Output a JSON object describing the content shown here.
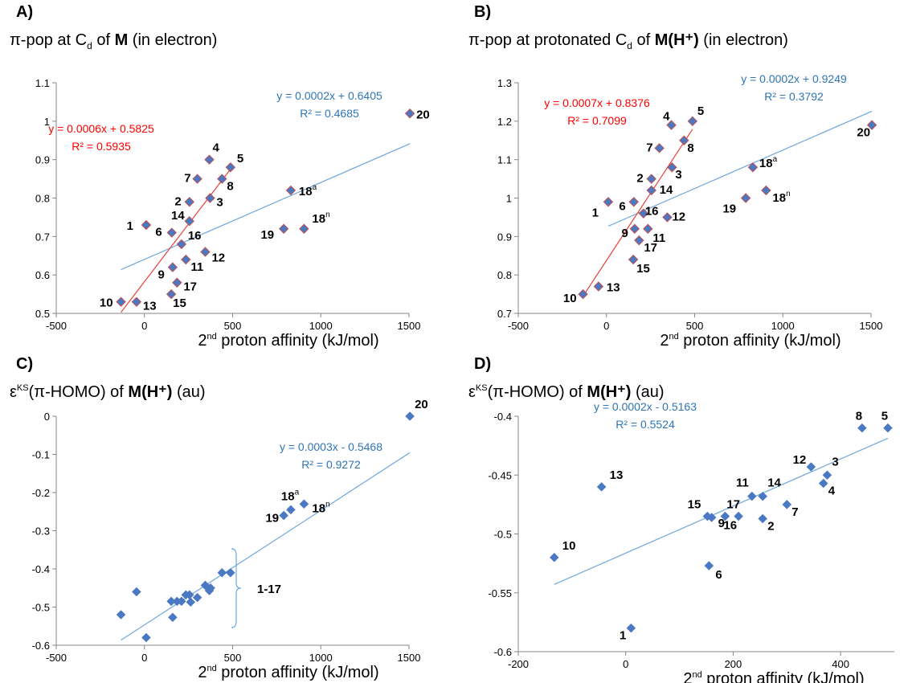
{
  "colors": {
    "marker": "#4a78c2",
    "marker_edge_red": "#c0504d",
    "fit_blue": "#6fa8dc",
    "fit_red": "#e8413c",
    "eq_blue": "#2e75b6",
    "eq_red": "#ff0000",
    "axis": "#868686"
  },
  "chart_data": [
    {
      "type": "scatter",
      "panel": "A)",
      "title": {
        "pre": "π-pop at C",
        "sub": "d",
        "mid": " of ",
        "bold": "M",
        "post": " (in electron)"
      },
      "xlabel": {
        "pre": "2",
        "sup": "nd",
        "post": " proton affinity (kJ/mol)"
      },
      "xlim": [
        -500,
        1500
      ],
      "ylim": [
        0.5,
        1.1
      ],
      "xticks": [
        -500,
        0,
        500,
        1000,
        1500
      ],
      "yticks": [
        0.5,
        0.6,
        0.7,
        0.8,
        0.9,
        1,
        1.1
      ],
      "red_edge_markers": true,
      "points": [
        {
          "x": 10,
          "y": 0.73,
          "label": "1",
          "sup": ""
        },
        {
          "x": 255,
          "y": 0.79,
          "label": "2",
          "sup": ""
        },
        {
          "x": 372,
          "y": 0.8,
          "label": "3",
          "sup": ""
        },
        {
          "x": 368,
          "y": 0.9,
          "label": "4",
          "sup": ""
        },
        {
          "x": 488,
          "y": 0.88,
          "label": "5",
          "sup": ""
        },
        {
          "x": 155,
          "y": 0.71,
          "label": "6",
          "sup": ""
        },
        {
          "x": 300,
          "y": 0.85,
          "label": "7",
          "sup": ""
        },
        {
          "x": 440,
          "y": 0.85,
          "label": "8",
          "sup": ""
        },
        {
          "x": 160,
          "y": 0.62,
          "label": "9",
          "sup": ""
        },
        {
          "x": -133,
          "y": 0.53,
          "label": "10",
          "sup": ""
        },
        {
          "x": 235,
          "y": 0.64,
          "label": "11",
          "sup": ""
        },
        {
          "x": 345,
          "y": 0.66,
          "label": "12",
          "sup": ""
        },
        {
          "x": -45,
          "y": 0.53,
          "label": "13",
          "sup": ""
        },
        {
          "x": 255,
          "y": 0.74,
          "label": "14",
          "sup": ""
        },
        {
          "x": 152,
          "y": 0.55,
          "label": "15",
          "sup": ""
        },
        {
          "x": 210,
          "y": 0.68,
          "label": "16",
          "sup": ""
        },
        {
          "x": 185,
          "y": 0.58,
          "label": "17",
          "sup": ""
        },
        {
          "x": 830,
          "y": 0.82,
          "label": "18",
          "sup": "a"
        },
        {
          "x": 905,
          "y": 0.72,
          "label": "18",
          "sup": "n"
        },
        {
          "x": 790,
          "y": 0.72,
          "label": "19",
          "sup": ""
        },
        {
          "x": 1505,
          "y": 1.02,
          "label": "20",
          "sup": ""
        }
      ],
      "fits": [
        {
          "color": "blue",
          "slope": 0.0002,
          "intercept": 0.6405,
          "x_range": [
            -133,
            1505
          ],
          "eq": "y = 0.0002x + 0.6405",
          "r2": "R² = 0.4685"
        },
        {
          "color": "red",
          "slope": 0.0006,
          "intercept": 0.5825,
          "x_range": [
            -133,
            488
          ],
          "eq": "y = 0.0006x + 0.5825",
          "r2": "R² = 0.5935"
        }
      ]
    },
    {
      "type": "scatter",
      "panel": "B)",
      "title": {
        "pre": "π-pop at protonated C",
        "sub": "d",
        "mid": " of ",
        "bold": "M(H⁺)",
        "post": " (in electron)"
      },
      "xlabel": {
        "pre": "2",
        "sup": "nd",
        "post": " proton affinity (kJ/mol)"
      },
      "xlim": [
        -500,
        1500
      ],
      "ylim": [
        0.7,
        1.3
      ],
      "xticks": [
        -500,
        0,
        500,
        1000,
        1500
      ],
      "yticks": [
        0.7,
        0.8,
        0.9,
        1,
        1.1,
        1.2,
        1.3
      ],
      "red_edge_markers": true,
      "points": [
        {
          "x": 10,
          "y": 0.99,
          "label": "1",
          "sup": ""
        },
        {
          "x": 255,
          "y": 1.05,
          "label": "2",
          "sup": ""
        },
        {
          "x": 372,
          "y": 1.08,
          "label": "3",
          "sup": ""
        },
        {
          "x": 368,
          "y": 1.19,
          "label": "4",
          "sup": ""
        },
        {
          "x": 488,
          "y": 1.2,
          "label": "5",
          "sup": ""
        },
        {
          "x": 155,
          "y": 0.99,
          "label": "6",
          "sup": ""
        },
        {
          "x": 300,
          "y": 1.13,
          "label": "7",
          "sup": ""
        },
        {
          "x": 440,
          "y": 1.15,
          "label": "8",
          "sup": ""
        },
        {
          "x": 160,
          "y": 0.92,
          "label": "9",
          "sup": ""
        },
        {
          "x": -133,
          "y": 0.75,
          "label": "10",
          "sup": ""
        },
        {
          "x": 235,
          "y": 0.92,
          "label": "11",
          "sup": ""
        },
        {
          "x": 345,
          "y": 0.95,
          "label": "12",
          "sup": ""
        },
        {
          "x": -45,
          "y": 0.77,
          "label": "13",
          "sup": ""
        },
        {
          "x": 255,
          "y": 1.02,
          "label": "14",
          "sup": ""
        },
        {
          "x": 152,
          "y": 0.84,
          "label": "15",
          "sup": ""
        },
        {
          "x": 210,
          "y": 0.96,
          "label": "16",
          "sup": ""
        },
        {
          "x": 185,
          "y": 0.89,
          "label": "17",
          "sup": ""
        },
        {
          "x": 830,
          "y": 1.08,
          "label": "18",
          "sup": "a"
        },
        {
          "x": 905,
          "y": 1.02,
          "label": "18",
          "sup": "n"
        },
        {
          "x": 790,
          "y": 1.0,
          "label": "19",
          "sup": ""
        },
        {
          "x": 1505,
          "y": 1.19,
          "label": "20",
          "sup": ""
        }
      ],
      "fits": [
        {
          "color": "blue",
          "slope": 0.0002,
          "intercept": 0.9249,
          "x_range": [
            10,
            1505
          ],
          "eq": "y = 0.0002x + 0.9249",
          "r2": "R² = 0.3792"
        },
        {
          "color": "red",
          "slope": 0.0007,
          "intercept": 0.8376,
          "x_range": [
            -133,
            488
          ],
          "eq": "y = 0.0007x + 0.8376",
          "r2": "R² = 0.7099"
        }
      ]
    },
    {
      "type": "scatter",
      "panel": "C)",
      "title": {
        "pre": "ε",
        "sup": "KS",
        "mid": "(π-HOMO)  of ",
        "bold": "M(H⁺)",
        "post": " (au)"
      },
      "xlabel": {
        "pre": "2",
        "sup": "nd",
        "post": " proton affinity (kJ/mol)"
      },
      "xlim": [
        -500,
        1500
      ],
      "ylim": [
        -0.6,
        0
      ],
      "xticks": [
        -500,
        0,
        500,
        1000,
        1500
      ],
      "yticks": [
        -0.6,
        -0.5,
        -0.4,
        -0.3,
        -0.2,
        -0.1,
        0
      ],
      "red_edge_markers": false,
      "points": [
        {
          "x": -133,
          "y": -0.52,
          "label": "",
          "sup": ""
        },
        {
          "x": -45,
          "y": -0.46,
          "label": "",
          "sup": ""
        },
        {
          "x": 10,
          "y": -0.58,
          "label": "",
          "sup": ""
        },
        {
          "x": 152,
          "y": -0.485,
          "label": "",
          "sup": ""
        },
        {
          "x": 160,
          "y": -0.527,
          "label": "",
          "sup": ""
        },
        {
          "x": 185,
          "y": -0.485,
          "label": "",
          "sup": ""
        },
        {
          "x": 210,
          "y": -0.485,
          "label": "",
          "sup": ""
        },
        {
          "x": 235,
          "y": -0.468,
          "label": "",
          "sup": ""
        },
        {
          "x": 255,
          "y": -0.468,
          "label": "",
          "sup": ""
        },
        {
          "x": 262,
          "y": -0.487,
          "label": "",
          "sup": ""
        },
        {
          "x": 300,
          "y": -0.475,
          "label": "",
          "sup": ""
        },
        {
          "x": 345,
          "y": -0.443,
          "label": "",
          "sup": ""
        },
        {
          "x": 368,
          "y": -0.457,
          "label": "",
          "sup": ""
        },
        {
          "x": 375,
          "y": -0.45,
          "label": "",
          "sup": ""
        },
        {
          "x": 440,
          "y": -0.41,
          "label": "",
          "sup": ""
        },
        {
          "x": 488,
          "y": -0.41,
          "label": "",
          "sup": ""
        },
        {
          "x": 790,
          "y": -0.26,
          "label": "19",
          "sup": ""
        },
        {
          "x": 830,
          "y": -0.245,
          "label": "18",
          "sup": "a"
        },
        {
          "x": 905,
          "y": -0.23,
          "label": "18",
          "sup": "n"
        },
        {
          "x": 1505,
          "y": 0,
          "label": "20",
          "sup": ""
        }
      ],
      "bracket_label": "1-17",
      "fits": [
        {
          "color": "blue",
          "slope": 0.0003,
          "intercept": -0.5468,
          "x_range": [
            -133,
            1505
          ],
          "eq": "y = 0.0003x - 0.5468",
          "r2": "R² = 0.9272"
        }
      ]
    },
    {
      "type": "scatter",
      "panel": "D)",
      "title": {
        "pre": "ε",
        "sup": "KS",
        "mid": "(π-HOMO)  of ",
        "bold": "M(H⁺)",
        "post": " (au)"
      },
      "xlabel": {
        "pre": "2",
        "sup": "nd",
        "post": " proton affinity (kJ/mol)"
      },
      "xlim": [
        -200,
        500
      ],
      "ylim": [
        -0.6,
        -0.4
      ],
      "xticks": [
        -200,
        0,
        200,
        400
      ],
      "yticks": [
        -0.6,
        -0.55,
        -0.5,
        -0.45,
        -0.4
      ],
      "red_edge_markers": false,
      "points": [
        {
          "x": 10,
          "y": -0.58,
          "label": "1",
          "sup": ""
        },
        {
          "x": 255,
          "y": -0.487,
          "label": "2",
          "sup": ""
        },
        {
          "x": 375,
          "y": -0.45,
          "label": "3",
          "sup": ""
        },
        {
          "x": 368,
          "y": -0.457,
          "label": "4",
          "sup": ""
        },
        {
          "x": 488,
          "y": -0.41,
          "label": "5",
          "sup": ""
        },
        {
          "x": 155,
          "y": -0.527,
          "label": "6",
          "sup": ""
        },
        {
          "x": 300,
          "y": -0.475,
          "label": "7",
          "sup": ""
        },
        {
          "x": 440,
          "y": -0.41,
          "label": "8",
          "sup": ""
        },
        {
          "x": 160,
          "y": -0.486,
          "label": "9",
          "sup": ""
        },
        {
          "x": -133,
          "y": -0.52,
          "label": "10",
          "sup": ""
        },
        {
          "x": 235,
          "y": -0.468,
          "label": "11",
          "sup": ""
        },
        {
          "x": 345,
          "y": -0.443,
          "label": "12",
          "sup": ""
        },
        {
          "x": -45,
          "y": -0.46,
          "label": "13",
          "sup": ""
        },
        {
          "x": 255,
          "y": -0.468,
          "label": "14",
          "sup": ""
        },
        {
          "x": 152,
          "y": -0.485,
          "label": "15",
          "sup": ""
        },
        {
          "x": 210,
          "y": -0.485,
          "label": "16",
          "sup": ""
        },
        {
          "x": 185,
          "y": -0.485,
          "label": "17",
          "sup": ""
        }
      ],
      "fits": [
        {
          "color": "blue",
          "slope": 0.0002,
          "intercept": -0.5163,
          "x_range": [
            -133,
            488
          ],
          "eq": "y = 0.0002x - 0.5163",
          "r2": "R² = 0.5524"
        }
      ]
    }
  ]
}
